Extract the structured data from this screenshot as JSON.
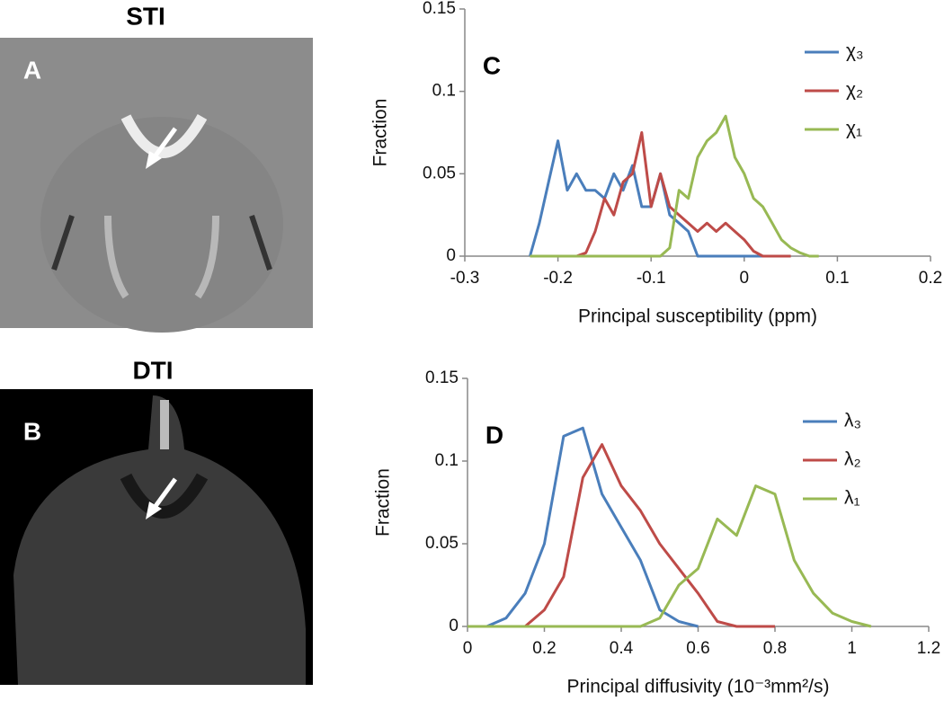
{
  "panels": [
    {
      "title": "STI",
      "label": "A"
    },
    {
      "title": "DTI",
      "label": "B"
    }
  ],
  "chart_data": [
    {
      "type": "line",
      "label": "C",
      "x_label": "Principal susceptibility (ppm)",
      "y_label": "Fraction",
      "x": [
        -0.23,
        -0.22,
        -0.21,
        -0.2,
        -0.19,
        -0.18,
        -0.17,
        -0.16,
        -0.15,
        -0.14,
        -0.13,
        -0.12,
        -0.11,
        -0.1,
        -0.09,
        -0.08,
        -0.07,
        -0.06,
        -0.05,
        -0.04,
        -0.03,
        -0.02,
        -0.01,
        0,
        0.01,
        0.02,
        0.03,
        0.04,
        0.05,
        0.06,
        0.07,
        0.08
      ],
      "series": [
        {
          "name": "χ₃",
          "color": "#4a7ebb",
          "values": [
            0,
            0.02,
            0.045,
            0.07,
            0.04,
            0.05,
            0.04,
            0.04,
            0.035,
            0.05,
            0.04,
            0.055,
            0.03,
            0.03,
            0.05,
            0.025,
            0.02,
            0.015,
            0,
            0,
            0,
            0,
            0,
            0,
            0,
            0,
            null,
            null,
            null,
            null,
            null,
            null
          ]
        },
        {
          "name": "χ₂",
          "color": "#be4b48",
          "values": [
            null,
            null,
            null,
            null,
            null,
            0,
            0.002,
            0.015,
            0.035,
            0.025,
            0.045,
            0.05,
            0.075,
            0.03,
            0.05,
            0.03,
            0.025,
            0.02,
            0.015,
            0.02,
            0.015,
            0.02,
            0.015,
            0.01,
            0.003,
            0,
            0,
            0,
            0,
            null,
            null,
            null
          ]
        },
        {
          "name": "χ₁",
          "color": "#98b954",
          "values": [
            0,
            0,
            0,
            0,
            0,
            0,
            0,
            0,
            0,
            0,
            0,
            0,
            0,
            0,
            0,
            0.005,
            0.04,
            0.035,
            0.06,
            0.07,
            0.075,
            0.085,
            0.06,
            0.05,
            0.035,
            0.03,
            0.02,
            0.01,
            0.005,
            0.002,
            0,
            0
          ]
        }
      ],
      "xlim": [
        -0.3,
        0.2
      ],
      "xticks": [
        -0.3,
        -0.2,
        -0.1,
        0,
        0.1,
        0.2
      ],
      "ylim": [
        0,
        0.15
      ],
      "yticks": [
        0,
        0.05,
        0.1,
        0.15
      ],
      "legend": "top-right"
    },
    {
      "type": "line",
      "label": "D",
      "x_label": "Principal diffusivity (10⁻³mm²/s)",
      "y_label": "Fraction",
      "x": [
        0,
        0.05,
        0.1,
        0.15,
        0.2,
        0.25,
        0.3,
        0.35,
        0.4,
        0.45,
        0.5,
        0.55,
        0.6,
        0.65,
        0.7,
        0.75,
        0.8,
        0.85,
        0.9,
        0.95,
        1,
        1.05
      ],
      "series": [
        {
          "name": "λ₃",
          "color": "#4a7ebb",
          "values": [
            0,
            0,
            0.005,
            0.02,
            0.05,
            0.115,
            0.12,
            0.08,
            0.06,
            0.04,
            0.01,
            0.003,
            0,
            null,
            null,
            null,
            null,
            null,
            null,
            null,
            null,
            null
          ]
        },
        {
          "name": "λ₂",
          "color": "#be4b48",
          "values": [
            null,
            null,
            null,
            0,
            0.01,
            0.03,
            0.09,
            0.11,
            0.085,
            0.07,
            0.05,
            0.035,
            0.02,
            0.003,
            0,
            0,
            0,
            null,
            null,
            null,
            null,
            null
          ]
        },
        {
          "name": "λ₁",
          "color": "#98b954",
          "values": [
            0,
            0,
            0,
            0,
            0,
            0,
            0,
            0,
            0,
            0,
            0.005,
            0.025,
            0.035,
            0.065,
            0.055,
            0.085,
            0.08,
            0.04,
            0.02,
            0.008,
            0.003,
            0
          ]
        }
      ],
      "xlim": [
        0,
        1.2
      ],
      "xticks": [
        0,
        0.2,
        0.4,
        0.6,
        0.8,
        1,
        1.2
      ],
      "ylim": [
        0,
        0.15
      ],
      "yticks": [
        0,
        0.05,
        0.1,
        0.15
      ],
      "legend": "top-right"
    }
  ]
}
